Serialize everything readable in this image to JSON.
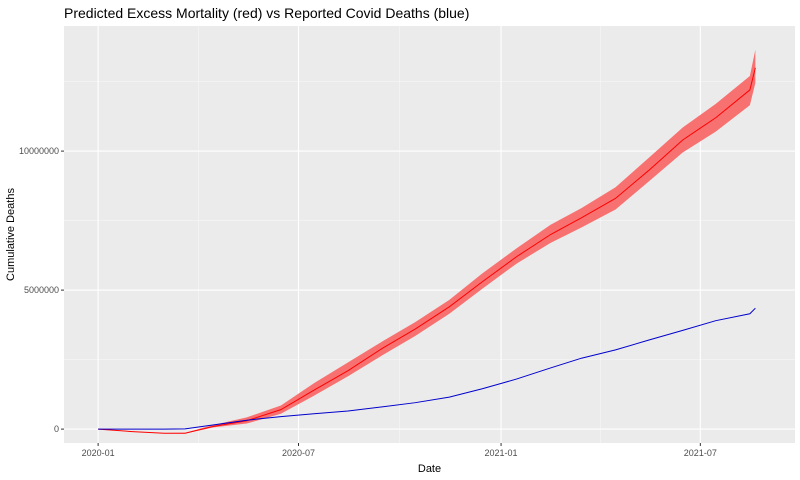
{
  "chart_data": {
    "type": "line",
    "title": "Predicted Excess Mortality (red) vs Reported Covid Deaths (blue)",
    "xlabel": "Date",
    "ylabel": "Cumulative Deaths",
    "x_ticks": [
      "2020-01",
      "2020-07",
      "2021-01",
      "2021-07"
    ],
    "y_ticks": [
      "0",
      "5000000",
      "10000000"
    ],
    "xlim": [
      "2019-12-01",
      "2021-09-25"
    ],
    "ylim": [
      -500000,
      14500000
    ],
    "grid": true,
    "legend": "none",
    "background_color": "#ebebeb",
    "grid_major_color": "#ffffff",
    "series": [
      {
        "color": "#ff0000",
        "band_color": "#f87171",
        "x": [
          "2020-01-01",
          "2020-02-01",
          "2020-03-01",
          "2020-03-20",
          "2020-04-15",
          "2020-05-15",
          "2020-06-15",
          "2020-07-15",
          "2020-08-15",
          "2020-09-15",
          "2020-10-15",
          "2020-11-15",
          "2020-12-15",
          "2021-01-15",
          "2021-02-15",
          "2021-03-15",
          "2021-04-15",
          "2021-05-15",
          "2021-06-15",
          "2021-07-15",
          "2021-08-15",
          "2021-08-20"
        ],
        "values": [
          0,
          -90000,
          -150000,
          -150000,
          100000,
          300000,
          700000,
          1400000,
          2100000,
          2900000,
          3600000,
          4400000,
          5300000,
          6200000,
          7000000,
          7600000,
          8300000,
          9300000,
          10400000,
          11200000,
          12200000,
          13000000
        ],
        "lower": [
          0,
          -90000,
          -150000,
          -160000,
          60000,
          200000,
          550000,
          1200000,
          1900000,
          2650000,
          3350000,
          4150000,
          5050000,
          5950000,
          6700000,
          7250000,
          7900000,
          8900000,
          9950000,
          10700000,
          11650000,
          12450000
        ],
        "upper": [
          0,
          -90000,
          -140000,
          -130000,
          150000,
          420000,
          850000,
          1650000,
          2400000,
          3150000,
          3850000,
          4650000,
          5600000,
          6500000,
          7350000,
          7950000,
          8700000,
          9750000,
          10850000,
          11700000,
          12700000,
          13650000
        ]
      },
      {
        "color": "#0000cc",
        "x": [
          "2020-01-01",
          "2020-02-01",
          "2020-03-01",
          "2020-03-20",
          "2020-04-15",
          "2020-05-15",
          "2020-06-15",
          "2020-07-15",
          "2020-08-15",
          "2020-09-15",
          "2020-10-15",
          "2020-11-15",
          "2020-12-15",
          "2021-01-15",
          "2021-02-15",
          "2021-03-15",
          "2021-04-15",
          "2021-05-15",
          "2021-06-15",
          "2021-07-15",
          "2021-08-15",
          "2021-08-20"
        ],
        "values": [
          0,
          0,
          0,
          10000,
          150000,
          320000,
          450000,
          550000,
          650000,
          800000,
          950000,
          1150000,
          1450000,
          1800000,
          2200000,
          2550000,
          2850000,
          3200000,
          3550000,
          3900000,
          4150000,
          4350000
        ]
      }
    ]
  }
}
